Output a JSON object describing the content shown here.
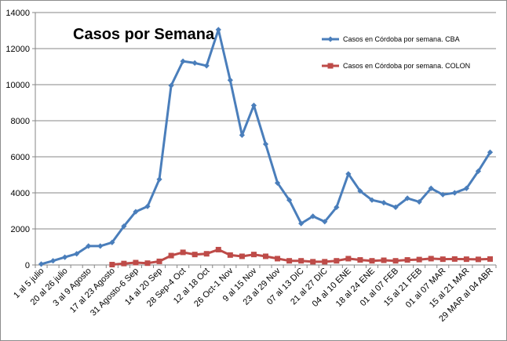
{
  "chart_data": {
    "type": "line",
    "title": "Casos por Semana",
    "xlabel": "",
    "ylabel": "",
    "ylim": [
      0,
      14000
    ],
    "yticks": [
      0,
      2000,
      4000,
      6000,
      8000,
      10000,
      12000,
      14000
    ],
    "grid": true,
    "legend_position": "top-right",
    "categories": [
      "1 al 5 julio",
      "",
      "20 al 26 julio",
      "",
      "3 al 9 Agosto",
      "",
      "17 al 23 Agosto",
      "",
      "31 Agosto-6 Sep",
      "",
      "14 al 20 Sep",
      "",
      "28 Sep-4 Oct",
      "",
      "12 al 18 Oct",
      "",
      "26 Oct-1 Nov",
      "",
      "9 al 15 Nov",
      "",
      "23 al 29 Nov",
      "",
      "07 al 13 DIC",
      "",
      "21 al 27 DIC",
      "",
      "04 al 10 ENE",
      "",
      "18 al 24 ENE",
      "",
      "01 al 07 FEB",
      "",
      "15 al 21 FEB",
      "",
      "01 al 07 MAR",
      "",
      "15 al 21 MAR",
      "",
      "29 MAR al 04 ABR"
    ],
    "series": [
      {
        "name": "Casos en Córdoba por semana. CBA",
        "color": "#4a7ebb",
        "marker": "diamond",
        "values": [
          50,
          230,
          430,
          620,
          1050,
          1050,
          1250,
          2150,
          2950,
          3250,
          4750,
          9950,
          11300,
          11200,
          11050,
          13050,
          10250,
          7200,
          8850,
          6700,
          4550,
          3600,
          2300,
          2700,
          2400,
          3200,
          5050,
          4100,
          3600,
          3450,
          3200,
          3700,
          3500,
          4250,
          3900,
          4000,
          4250,
          5200,
          6250
        ]
      },
      {
        "name": "Casos en Córdoba por semana. COLON",
        "color": "#be4b48",
        "marker": "square",
        "values": [
          null,
          null,
          null,
          null,
          null,
          null,
          20,
          80,
          130,
          100,
          200,
          520,
          700,
          580,
          620,
          850,
          550,
          480,
          580,
          480,
          350,
          230,
          230,
          180,
          180,
          230,
          350,
          280,
          230,
          260,
          230,
          280,
          300,
          350,
          320,
          330,
          320,
          310,
          330
        ]
      }
    ]
  }
}
